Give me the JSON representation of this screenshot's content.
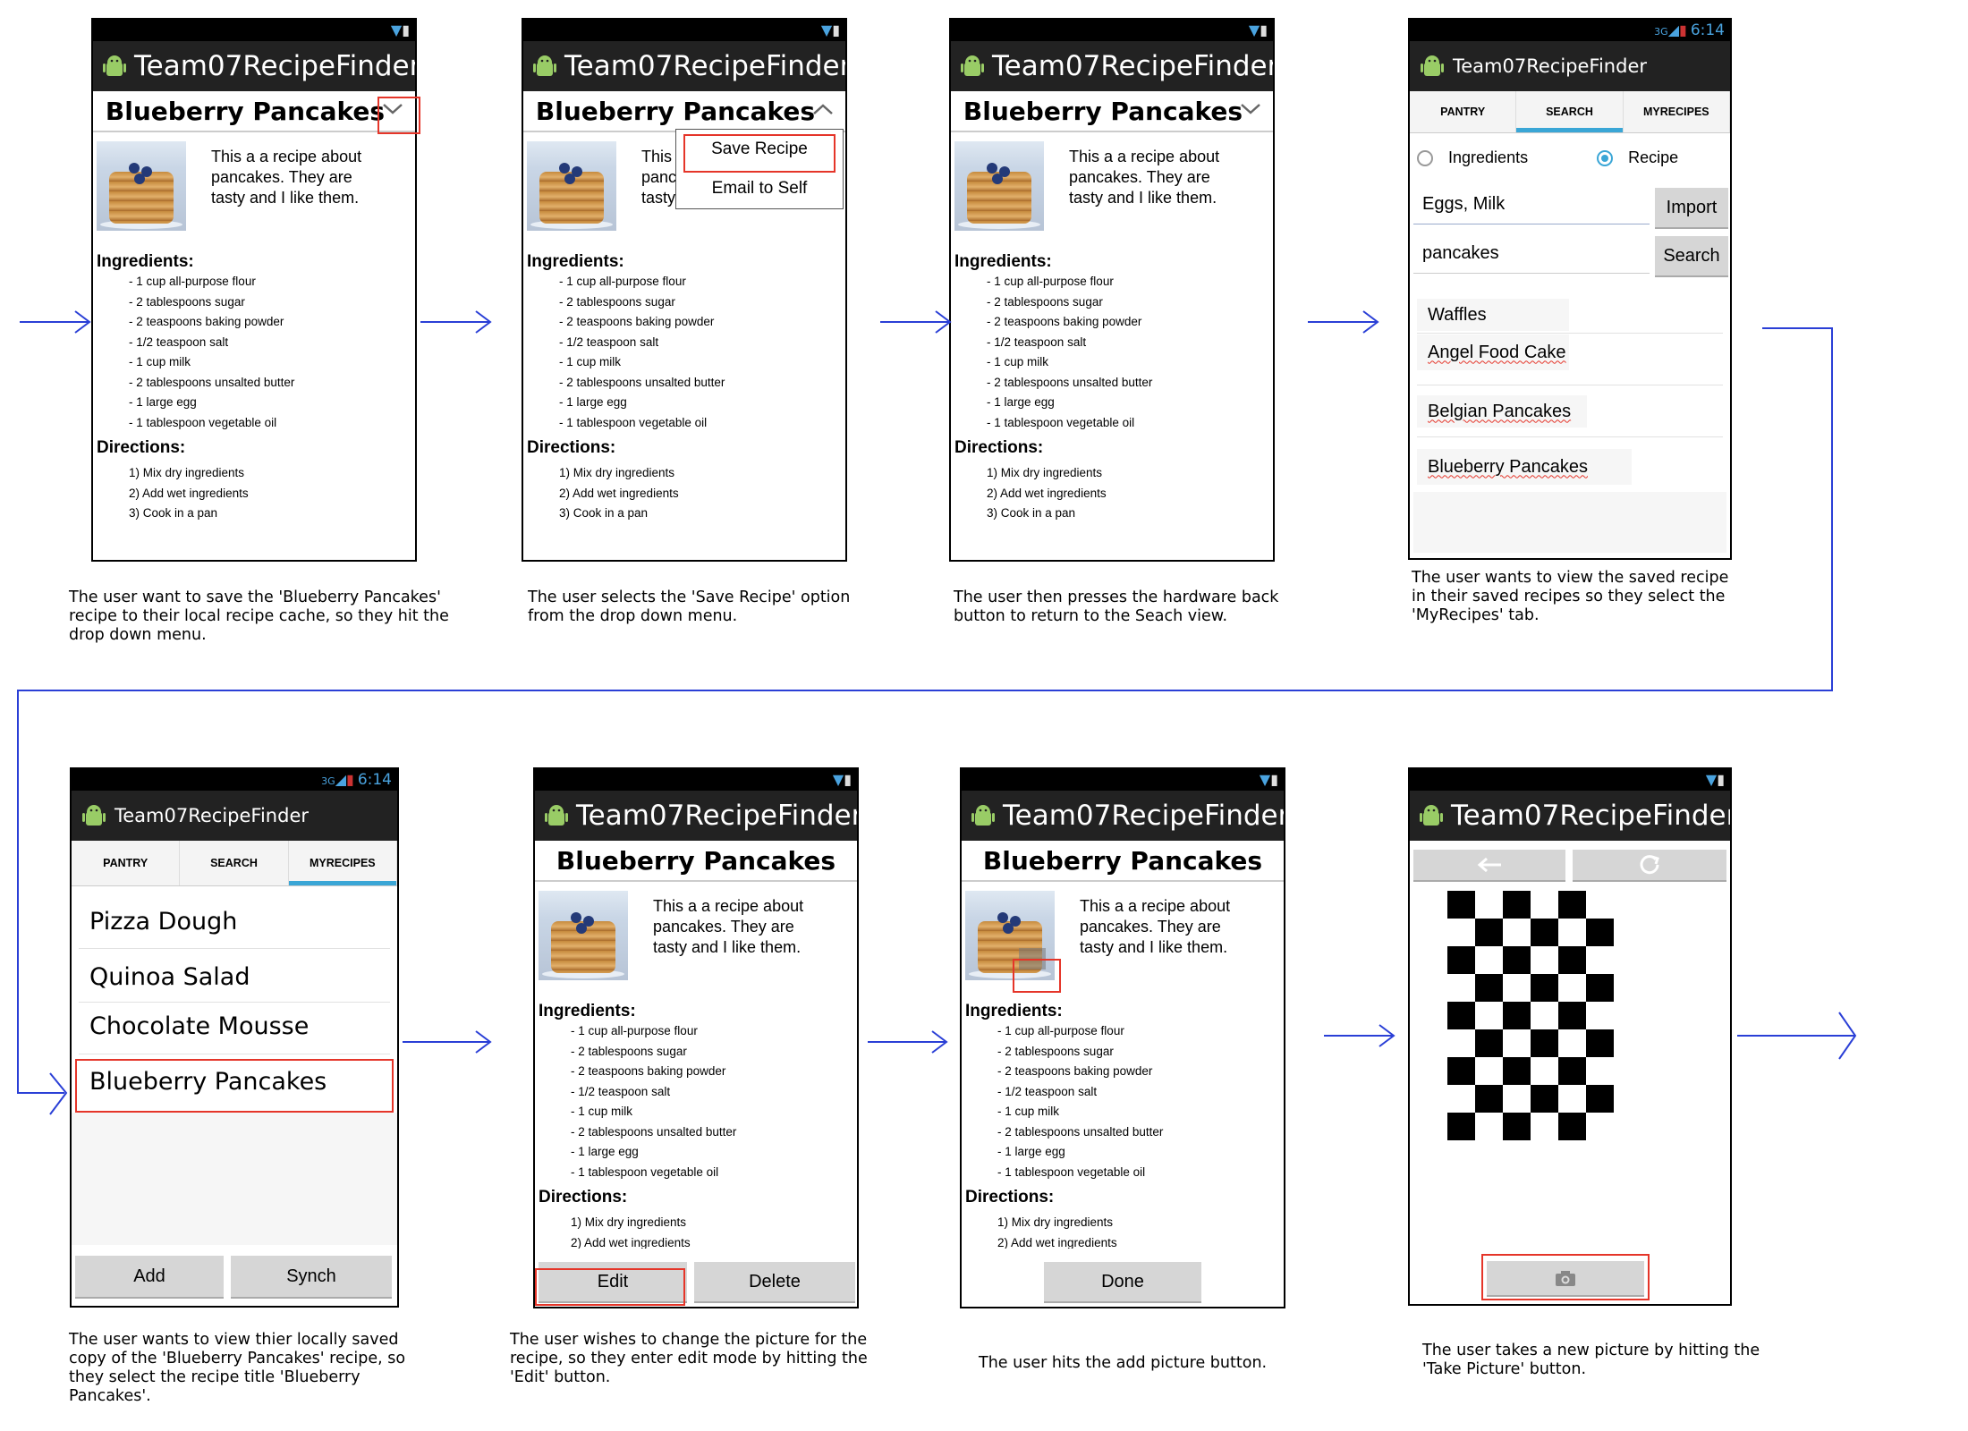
{
  "app_title": "Team07RecipeFinder",
  "clock": "6:14",
  "recipe": {
    "title": "Blueberry Pancakes",
    "intro": "This a a recipe about pancakes. They are tasty and I like them.",
    "ingredients_heading": "Ingredients:",
    "ingredients": [
      "- 1 cup all-purpose flour",
      "- 2 tablespoons sugar",
      "- 2 teaspoons baking powder",
      "- 1/2 teaspoon salt",
      "- 1 cup milk",
      "- 2 tablespoons unsalted butter",
      "- 1 large egg",
      "- 1 tablespoon vegetable oil"
    ],
    "directions_heading": "Directions:",
    "directions": [
      "1) Mix dry ingredients",
      "2) Add wet ingredients",
      "3) Cook in a pan"
    ]
  },
  "menu": {
    "save": "Save Recipe",
    "email": "Email to Self"
  },
  "tabs": {
    "pantry": "PANTRY",
    "search": "SEARCH",
    "myrecipes": "MYRECIPES"
  },
  "search_view": {
    "radio_ingredients": "Ingredients",
    "radio_recipe": "Recipe",
    "ingredients_value": "Eggs, Milk",
    "import_label": "Import",
    "search_value": "pancakes",
    "search_label": "Search",
    "results": [
      "Waffles",
      "Angel Food Cake",
      "Belgian Pancakes",
      "Blueberry Pancakes"
    ]
  },
  "my_recipes": {
    "items": [
      "Pizza Dough",
      "Quinoa Salad",
      "Chocolate Mousse",
      "Blueberry Pancakes"
    ],
    "add_label": "Add",
    "synch_label": "Synch"
  },
  "edit_view": {
    "edit_label": "Edit",
    "delete_label": "Delete",
    "done_label": "Done"
  },
  "captions": [
    "The user want to save the 'Blueberry Pancakes' recipe to their local recipe cache, so they hit the drop down menu.",
    "The user selects the 'Save Recipe' option from the drop down menu.",
    "The user then presses the hardware back button to return to the Seach view.",
    "The user wants to view the saved recipe in their saved recipes so they select the 'MyRecipes' tab.",
    "The user wants to view thier locally saved copy of the 'Blueberry Pancakes' recipe, so they select the recipe title 'Blueberry Pancakes'.",
    "The user wishes to change the picture for the recipe, so they enter edit mode by hitting the 'Edit' button.",
    "The user hits the add picture button.",
    "The user takes a new picture by hitting the 'Take Picture' button."
  ],
  "colors": {
    "highlight": "#e53529",
    "arrow": "#2a3fd6",
    "tab_indicator": "#3aa6d6",
    "status_icons": "#4aa3df"
  }
}
